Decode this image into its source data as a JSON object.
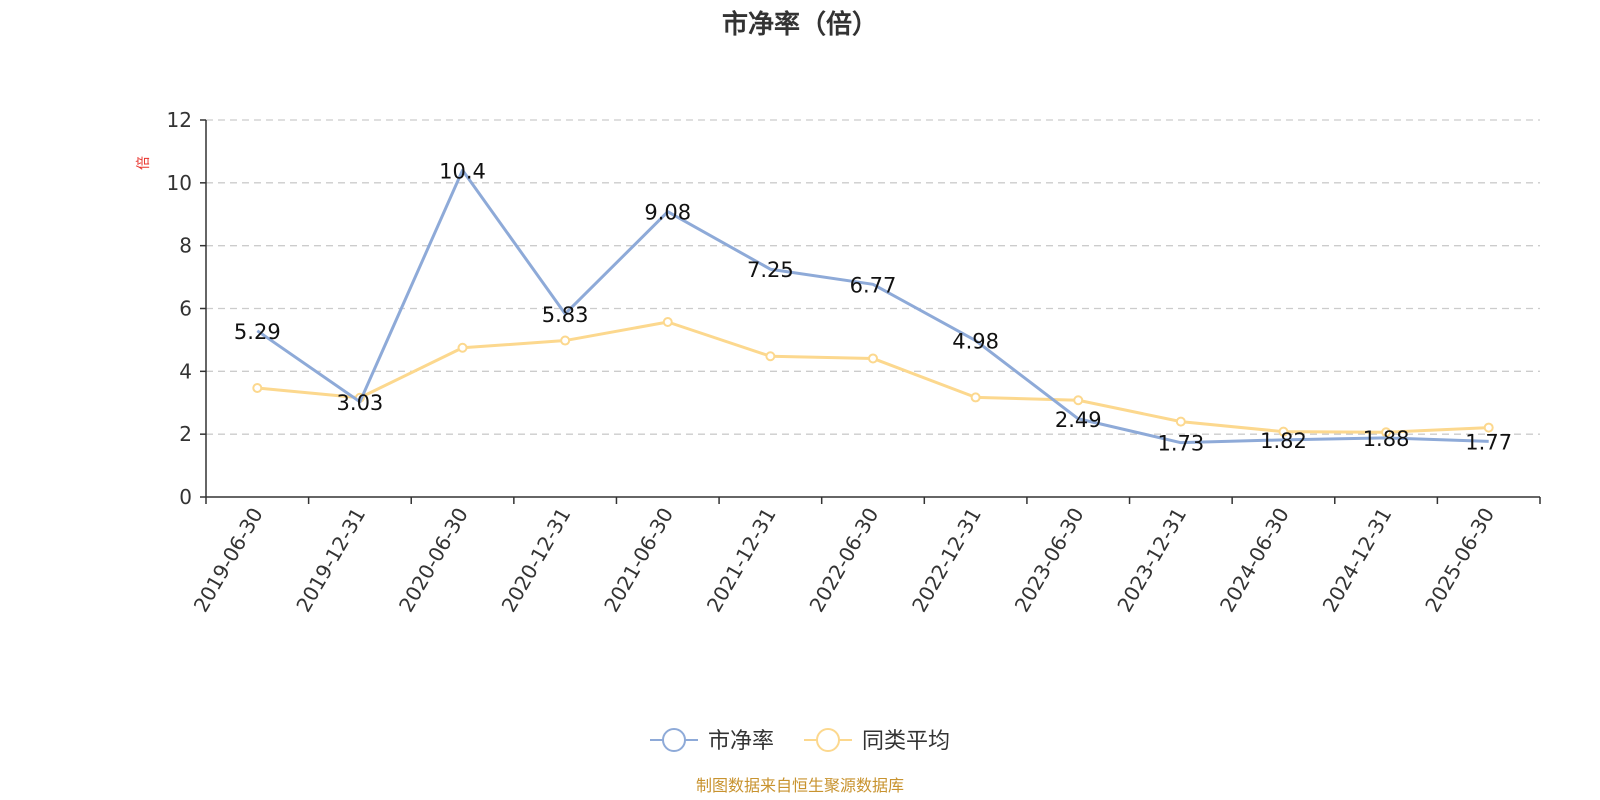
{
  "source_note": "制图数据来自恒生聚源数据库",
  "colors": {
    "pb_line": "#8eaad8",
    "avg_line": "#fcd88e",
    "grid": "#cccccc",
    "axis": "#333333",
    "text": "#333333",
    "source": "#c8932f",
    "unit": "#e8322b"
  },
  "chart_data": {
    "type": "line",
    "title": "市净率（倍）",
    "ylabel": "倍",
    "ylim": [
      0,
      12
    ],
    "yticks": [
      0,
      2,
      4,
      6,
      8,
      10,
      12
    ],
    "grid": "horizontal-dashed",
    "legend_position": "bottom-center",
    "categories": [
      "2019-06-30",
      "2019-12-31",
      "2020-06-30",
      "2020-12-31",
      "2021-06-30",
      "2021-12-31",
      "2022-06-30",
      "2022-12-31",
      "2023-06-30",
      "2023-12-31",
      "2024-06-30",
      "2024-12-31",
      "2025-06-30"
    ],
    "series": [
      {
        "name": "市净率",
        "color": "#8eaad8",
        "values": [
          5.29,
          3.03,
          10.4,
          5.83,
          9.08,
          7.25,
          6.77,
          4.98,
          2.49,
          1.73,
          1.82,
          1.88,
          1.77
        ],
        "labels": [
          "5.29",
          "3.03",
          "10.4",
          "5.83",
          "9.08",
          "7.25",
          "6.77",
          "4.98",
          "2.49",
          "1.73",
          "1.82",
          "1.88",
          "1.77"
        ]
      },
      {
        "name": "同类平均",
        "color": "#fcd88e",
        "values": [
          3.47,
          3.16,
          4.75,
          4.98,
          5.57,
          4.48,
          4.41,
          3.17,
          3.08,
          2.4,
          2.08,
          2.06,
          2.21
        ]
      }
    ]
  }
}
